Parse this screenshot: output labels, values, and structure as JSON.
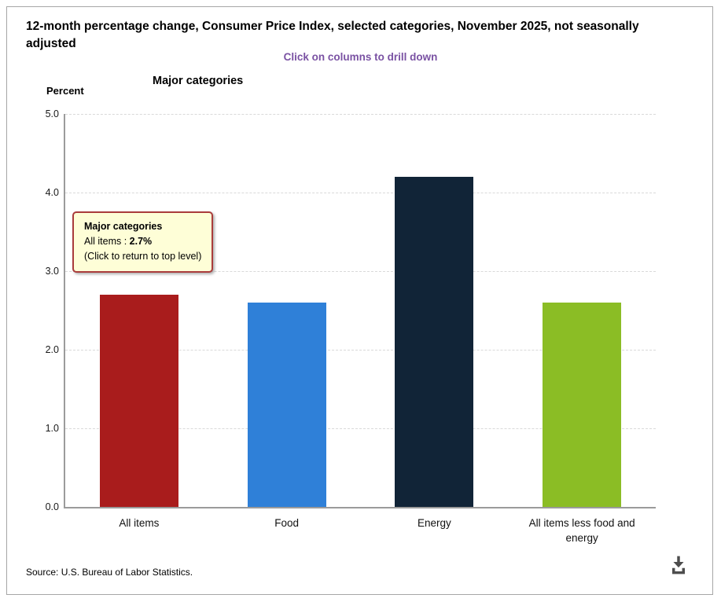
{
  "header": {
    "title": "12-month percentage change, Consumer Price Index, selected categories, November 2025, not seasonally adjusted",
    "subtitle": "Click on columns to drill down",
    "subtitle_color": "#7a52a3",
    "chart_heading": "Major categories",
    "y_axis_title": "Percent"
  },
  "chart_data": {
    "type": "bar",
    "title": "Major categories",
    "categories": [
      "All items",
      "Food",
      "Energy",
      "All items less food and energy"
    ],
    "values": [
      2.7,
      2.6,
      4.2,
      2.6
    ],
    "bar_colors": [
      "#a91c1c",
      "#2f80d8",
      "#112437",
      "#8bbd25"
    ],
    "xlabel": "",
    "ylabel": "Percent",
    "ylim": [
      0,
      5
    ],
    "yticks": [
      5,
      4,
      3,
      2,
      1,
      0
    ],
    "grid": "horizontal-dashed",
    "legend": "none"
  },
  "tooltip": {
    "title": "Major categories",
    "item_label": "All items",
    "separator": " : ",
    "item_value": "2.7%",
    "hint": "(Click to return to top level)",
    "bg": "#fefed7",
    "border": "#aa3c3c"
  },
  "footer": {
    "source": "Source: U.S. Bureau of Labor Statistics.",
    "download_icon": "download-icon"
  }
}
